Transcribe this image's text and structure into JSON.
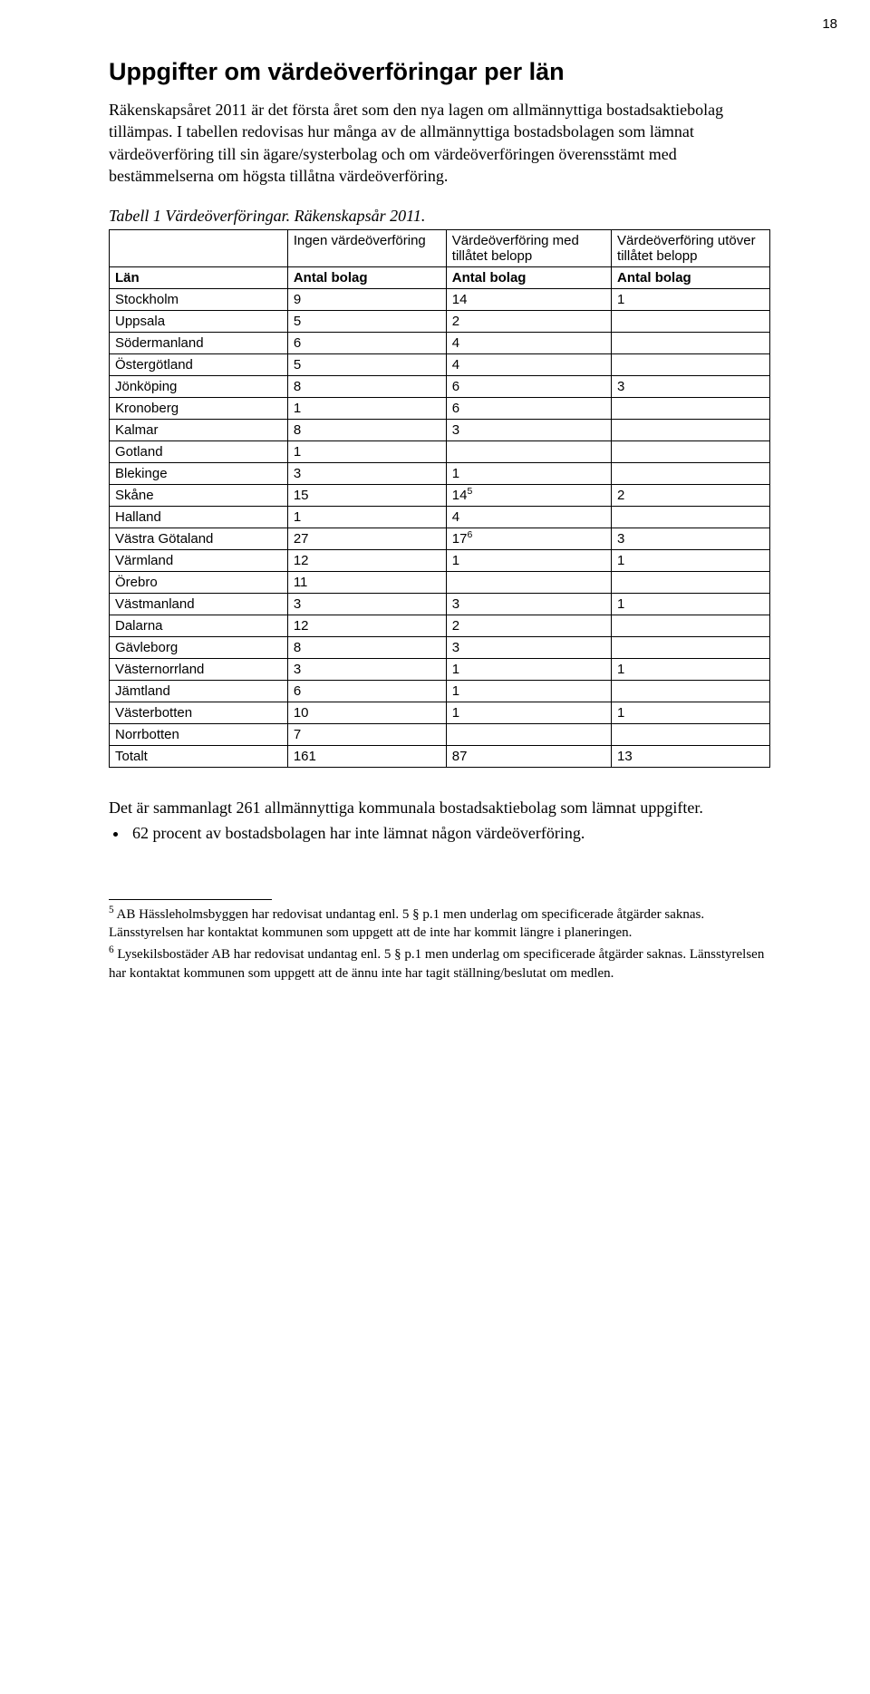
{
  "page_number": "18",
  "heading": "Uppgifter om värdeöverföringar per län",
  "intro": "Räkenskapsåret 2011 är det första året som den nya lagen om allmännyttiga bostadsaktiebolag tillämpas. I tabellen redovisas hur många av de allmännyttiga bostadsbolagen som lämnat värdeöverföring till sin ägare/systerbolag och om värdeöverföringen överensstämt med bestämmelserna om högsta tillåtna värdeöverföring.",
  "table": {
    "caption": "Tabell 1 Värdeöverföringar. Räkenskapsår 2011.",
    "head1": [
      "",
      "Ingen värdeöverföring",
      "Värdeöverföring med tillåtet belopp",
      "Värdeöverföring utöver tillåtet belopp"
    ],
    "head2": [
      "Län",
      "Antal bolag",
      "Antal bolag",
      "Antal bolag"
    ],
    "rows": [
      {
        "c": [
          "Stockholm",
          "9",
          "14",
          "1"
        ]
      },
      {
        "c": [
          "Uppsala",
          "5",
          "2",
          ""
        ]
      },
      {
        "c": [
          "Södermanland",
          "6",
          "4",
          ""
        ]
      },
      {
        "c": [
          "Östergötland",
          "5",
          "4",
          ""
        ]
      },
      {
        "c": [
          "Jönköping",
          "8",
          "6",
          "3"
        ]
      },
      {
        "c": [
          "Kronoberg",
          "1",
          "6",
          ""
        ]
      },
      {
        "c": [
          "Kalmar",
          "8",
          "3",
          ""
        ]
      },
      {
        "c": [
          "Gotland",
          "1",
          "",
          ""
        ]
      },
      {
        "c": [
          "Blekinge",
          "3",
          "1",
          ""
        ]
      },
      {
        "c": [
          "Skåne",
          "15",
          "14",
          "2"
        ],
        "sup_col": 2,
        "sup": "5"
      },
      {
        "c": [
          "Halland",
          "1",
          "4",
          ""
        ]
      },
      {
        "c": [
          "Västra Götaland",
          "27",
          "17",
          "3"
        ],
        "sup_col": 2,
        "sup": "6"
      },
      {
        "c": [
          "Värmland",
          "12",
          "1",
          "1"
        ]
      },
      {
        "c": [
          "Örebro",
          "11",
          "",
          ""
        ]
      },
      {
        "c": [
          "Västmanland",
          "3",
          "3",
          "1"
        ]
      },
      {
        "c": [
          "Dalarna",
          "12",
          "2",
          ""
        ]
      },
      {
        "c": [
          "Gävleborg",
          "8",
          "3",
          ""
        ]
      },
      {
        "c": [
          "Västernorrland",
          "3",
          "1",
          "1"
        ]
      },
      {
        "c": [
          "Jämtland",
          "6",
          "1",
          ""
        ]
      },
      {
        "c": [
          "Västerbotten",
          "10",
          "1",
          "1"
        ]
      },
      {
        "c": [
          "Norrbotten",
          "7",
          "",
          ""
        ]
      },
      {
        "c": [
          "Totalt",
          "161",
          "87",
          "13"
        ]
      }
    ]
  },
  "after_table": "Det är sammanlagt 261 allmännyttiga kommunala bostadsaktiebolag som lämnat uppgifter.",
  "bullet1": "62 procent av bostadsbolagen har inte lämnat någon värdeöverföring.",
  "footnotes": {
    "f5_sup": "5",
    "f5_text": " AB Hässleholmsbyggen har redovisat undantag enl. 5 § p.1 men underlag om specificerade åtgärder saknas. Länsstyrelsen har kontaktat kommunen som uppgett att de inte har kommit längre i planeringen.",
    "f6_sup": "6",
    "f6_text": " Lysekilsbostäder AB har redovisat undantag enl. 5 § p.1 men underlag om specificerade åtgärder saknas. Länsstyrelsen har kontaktat kommunen som uppgett att de ännu inte har tagit ställning/beslutat om medlen."
  }
}
